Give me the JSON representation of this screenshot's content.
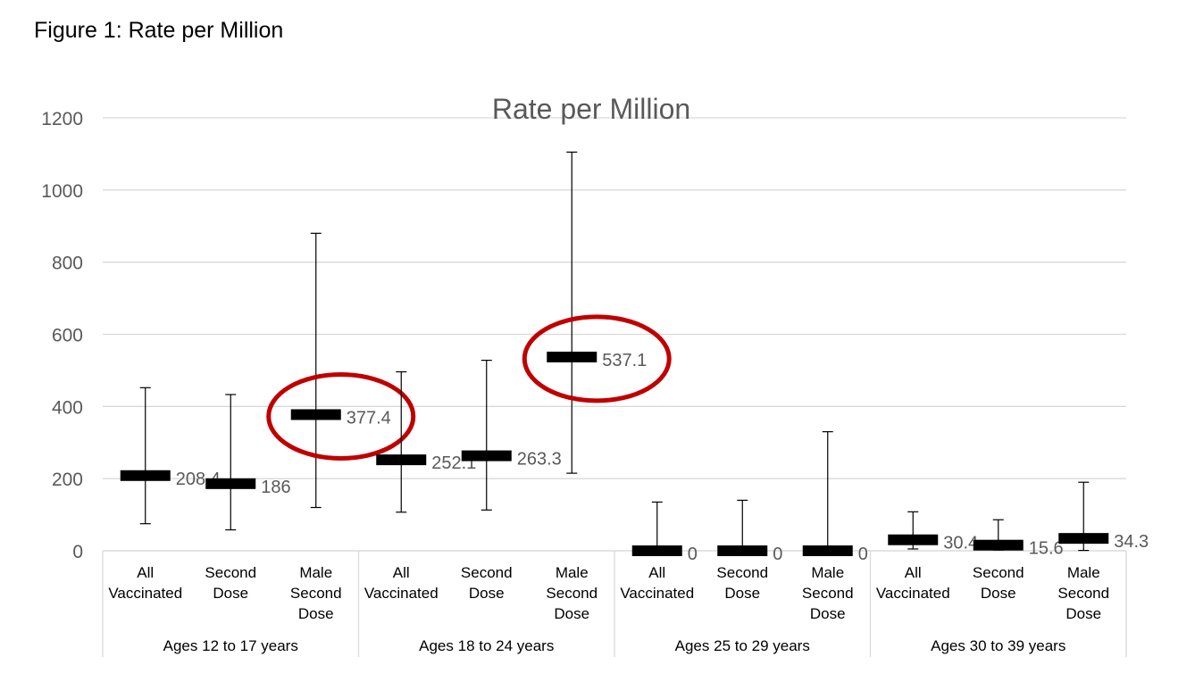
{
  "figure_caption": "Figure 1: Rate per Million",
  "chart_data": {
    "type": "scatter",
    "title": "Rate per Million",
    "xlabel": "",
    "ylabel": "",
    "ylim": [
      0,
      1200
    ],
    "yticks": [
      0,
      200,
      400,
      600,
      800,
      1000,
      1200
    ],
    "grid": true,
    "legend": "none",
    "groups": [
      {
        "label": "Ages 12 to 17 years",
        "categories": [
          {
            "label": [
              "All",
              "Vaccinated"
            ],
            "value": 208.4,
            "value_label": "208.4",
            "low": 75,
            "high": 452,
            "highlight": false
          },
          {
            "label": [
              "Second",
              "Dose"
            ],
            "value": 186,
            "value_label": "186",
            "low": 58,
            "high": 433,
            "highlight": false
          },
          {
            "label": [
              "Male",
              "Second",
              "Dose"
            ],
            "value": 377.4,
            "value_label": "377.4",
            "low": 120,
            "high": 880,
            "highlight": true
          }
        ]
      },
      {
        "label": "Ages 18 to 24 years",
        "categories": [
          {
            "label": [
              "All",
              "Vaccinated"
            ],
            "value": 252.1,
            "value_label": "252.1",
            "low": 107,
            "high": 496,
            "highlight": false
          },
          {
            "label": [
              "Second",
              "Dose"
            ],
            "value": 263.3,
            "value_label": "263.3",
            "low": 113,
            "high": 528,
            "highlight": false
          },
          {
            "label": [
              "Male",
              "Second",
              "Dose"
            ],
            "value": 537.1,
            "value_label": "537.1",
            "low": 215,
            "high": 1105,
            "highlight": true
          }
        ]
      },
      {
        "label": "Ages 25 to 29 years",
        "categories": [
          {
            "label": [
              "All",
              "Vaccinated"
            ],
            "value": 0,
            "value_label": "0",
            "low": 0,
            "high": 135,
            "highlight": false
          },
          {
            "label": [
              "Second",
              "Dose"
            ],
            "value": 0,
            "value_label": "0",
            "low": 0,
            "high": 140,
            "highlight": false
          },
          {
            "label": [
              "Male",
              "Second",
              "Dose"
            ],
            "value": 0,
            "value_label": "0",
            "low": 0,
            "high": 330,
            "highlight": false
          }
        ]
      },
      {
        "label": "Ages 30 to 39 years",
        "categories": [
          {
            "label": [
              "All",
              "Vaccinated"
            ],
            "value": 30.4,
            "value_label": "30.4",
            "low": 5,
            "high": 108,
            "highlight": false
          },
          {
            "label": [
              "Second",
              "Dose"
            ],
            "value": 15.6,
            "value_label": "15.6",
            "low": 2,
            "high": 86,
            "highlight": false
          },
          {
            "label": [
              "Male",
              "Second",
              "Dose"
            ],
            "value": 34.3,
            "value_label": "34.3",
            "low": 1,
            "high": 190,
            "highlight": false
          }
        ]
      }
    ],
    "colors": {
      "marker": "#000000",
      "grid": "#d9d9d9",
      "axis_text": "#595959",
      "title": "#595959",
      "highlight_ring": "#c00000"
    }
  }
}
